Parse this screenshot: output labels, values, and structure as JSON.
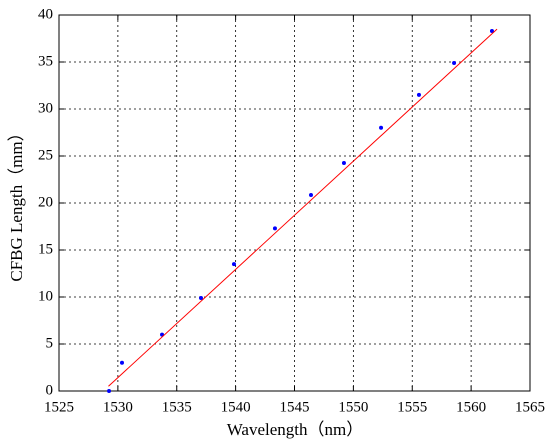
{
  "chart_data": {
    "type": "scatter",
    "xlabel": "Wavelength（nm）",
    "ylabel": "CFBG Length（mm）",
    "xlim": [
      1525,
      1565
    ],
    "ylim": [
      0,
      40
    ],
    "xticks": [
      1525,
      1530,
      1535,
      1540,
      1545,
      1550,
      1555,
      1560,
      1565
    ],
    "yticks": [
      0,
      5,
      10,
      15,
      20,
      25,
      30,
      35,
      40
    ],
    "grid": true,
    "series": [
      {
        "style": "markers",
        "color": "#0000ff",
        "x": [
          1529.25,
          1530.35,
          1533.75,
          1537.06,
          1539.86,
          1543.34,
          1546.4,
          1549.2,
          1552.35,
          1555.57,
          1558.55,
          1561.77
        ],
        "values": [
          0,
          3,
          6,
          9.9,
          13.5,
          17.3,
          20.85,
          24.25,
          28,
          31.5,
          34.9,
          38.3
        ]
      },
      {
        "style": "line",
        "color": "#ff0000",
        "x": [
          1529.2,
          1562.2
        ],
        "values": [
          0.5,
          38.5
        ]
      }
    ]
  }
}
